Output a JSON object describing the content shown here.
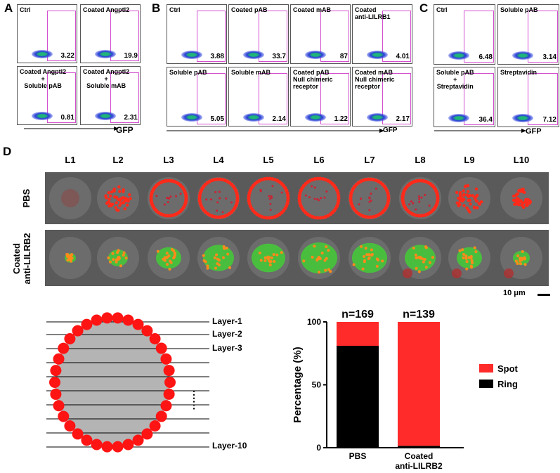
{
  "panels": {
    "A": {
      "letter": "A",
      "plots": [
        {
          "title": "Ctrl",
          "value": "3.22"
        },
        {
          "title": "Coated Angptl2",
          "value": "19.9"
        },
        {
          "title": "Coated Angptl2\n+\nSoluble pAB",
          "value": "0.81"
        },
        {
          "title": "Coated Angptl2\n+\nSoluble mAB",
          "value": "2.31"
        }
      ],
      "axis": "GFP"
    },
    "B": {
      "letter": "B",
      "plots": [
        {
          "title": "Ctrl",
          "value": "3.88"
        },
        {
          "title": "Coated pAB",
          "value": "33.7"
        },
        {
          "title": "Coated mAB",
          "value": "87"
        },
        {
          "title": "Coated\nanti-LILRB1",
          "value": "4.01"
        },
        {
          "title": "Soluble pAB",
          "value": "5.05"
        },
        {
          "title": "Soluble mAB",
          "value": "2.14"
        },
        {
          "title": "Coated pAB\nNull chimeric\nreceptor",
          "value": "1.22"
        },
        {
          "title": "Coated mAB\nNull chimeric\nreceptor",
          "value": "2.17"
        }
      ],
      "axis": "GFP"
    },
    "C": {
      "letter": "C",
      "plots": [
        {
          "title": "Ctrl",
          "value": "6.48"
        },
        {
          "title": "Soluble pAB",
          "value": "3.14"
        },
        {
          "title": "Soluble pAB\n+\nStreptavidin",
          "value": "36.4"
        },
        {
          "title": "Streptavidin",
          "value": "7.12"
        }
      ],
      "axis": "GFP"
    },
    "D": {
      "letter": "D",
      "lanes": [
        "L1",
        "L2",
        "L3",
        "L4",
        "L5",
        "L6",
        "L7",
        "L8",
        "L9",
        "L10"
      ],
      "row1": "PBS",
      "row2a": "Coated",
      "row2b": "anti-LILRB2",
      "scale": "10 μm"
    }
  },
  "schematic": {
    "layers": [
      "Layer-1",
      "Layer-2",
      "Layer-3",
      "Layer-10"
    ],
    "dots": "......"
  },
  "chart_data": {
    "type": "bar",
    "stacked": true,
    "categories": [
      "PBS",
      "Coated\nanti-LILRB2"
    ],
    "n_labels": [
      "n=169",
      "n=139"
    ],
    "series": [
      {
        "name": "Ring",
        "values": [
          81,
          1.5
        ],
        "color": "#000000"
      },
      {
        "name": "Spot",
        "values": [
          19,
          98.5
        ],
        "color": "#ff2a2a"
      }
    ],
    "ylabel": "Percentage (%)",
    "ylim": [
      0,
      100
    ],
    "yticks": [
      "0",
      "50",
      "100"
    ],
    "legend": "right"
  }
}
